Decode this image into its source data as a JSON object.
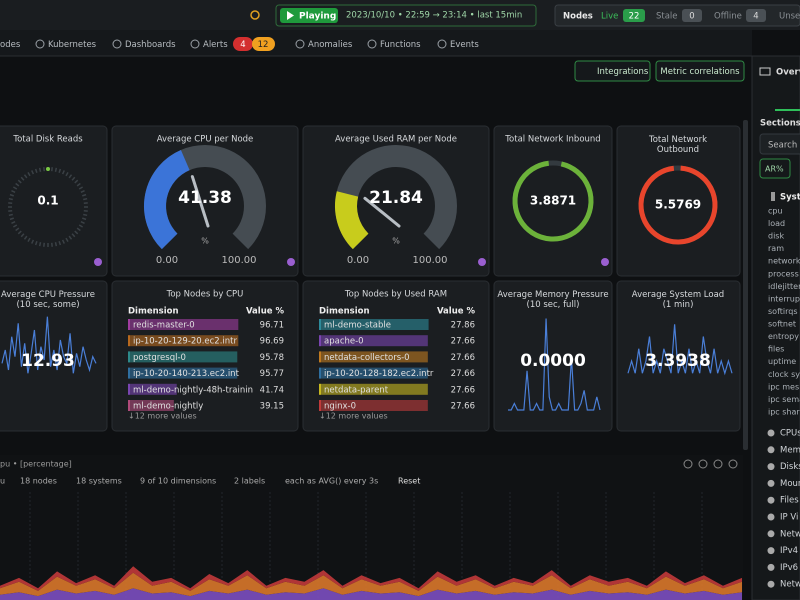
{
  "topbar": {
    "playing": "Playing",
    "time_range": "2023/10/10 • 22:59 → 23:14 • last 15min",
    "nodes_label": "Nodes",
    "live": "Live",
    "live_count": 22,
    "stale": "Stale",
    "stale_count": 0,
    "offline": "Offline",
    "offline_count": 4,
    "unseen": "Unse"
  },
  "nav": {
    "items": [
      "odes",
      "Kubernetes",
      "Dashboards",
      "Alerts",
      "Anomalies",
      "Functions",
      "Events"
    ],
    "alert_critical": 4,
    "alert_warning": 12
  },
  "actions": {
    "integrations": "Integrations",
    "metric_correlations": "Metric correlations"
  },
  "cards": {
    "disk_reads": {
      "title": "Total Disk Reads",
      "value": "0.1"
    },
    "cpu_gauge": {
      "title": "Average CPU per Node",
      "value": 41.38,
      "unit": "%",
      "min": "0.00",
      "max": "100.00"
    },
    "ram_gauge": {
      "title": "Average Used RAM per Node",
      "value": 21.84,
      "unit": "%",
      "min": "0.00",
      "max": "100.00"
    },
    "net_in": {
      "title": "Total Network Inbound",
      "value": "3.8871"
    },
    "net_out": {
      "title": "Total Network Outbound",
      "value": "5.5769"
    },
    "cpu_pressure": {
      "title": "Average CPU Pressure (10 sec, some)",
      "value": 12.93,
      "spark": [
        14,
        18,
        12,
        22,
        16,
        26,
        13,
        20,
        11,
        17,
        24,
        12,
        19,
        15,
        28,
        13,
        18,
        12,
        21,
        16,
        14,
        23,
        11,
        17,
        13,
        19,
        15,
        12,
        16,
        14
      ]
    },
    "mem_pressure": {
      "title": "Average Memory Pressure (10 sec, full)",
      "value": "0.0000",
      "spark": [
        0,
        0,
        1,
        0,
        0,
        0,
        6,
        0,
        0,
        1,
        0,
        0,
        14,
        2,
        0,
        0,
        1,
        0,
        0,
        0,
        8,
        0,
        0,
        1,
        3,
        0,
        0,
        0,
        2,
        0
      ]
    },
    "sys_load": {
      "title": "Average System Load (1 min)",
      "value": "3.3938",
      "spark": [
        3,
        4,
        3,
        5,
        3,
        4,
        6,
        3,
        4,
        3,
        5,
        4,
        3,
        7,
        3,
        4,
        3,
        5,
        3,
        4,
        3,
        6,
        4,
        3,
        5,
        3,
        4,
        3,
        4,
        3
      ]
    }
  },
  "top_cpu": {
    "title": "Top Nodes by CPU",
    "headers": [
      "Dimension",
      "Value %"
    ],
    "rows": [
      [
        "redis-master-0",
        96.71
      ],
      [
        "ip-10-20-129-20.ec2.intr",
        96.69
      ],
      [
        "postgresql-0",
        95.78
      ],
      [
        "ip-10-20-140-213.ec2.int",
        95.77
      ],
      [
        "ml-demo-nightly-48h-trainin",
        41.74
      ],
      [
        "ml-demo-nightly",
        39.15
      ]
    ],
    "more": "↓12 more values"
  },
  "top_ram": {
    "title": "Top Nodes by Used RAM",
    "headers": [
      "Dimension",
      "Value %"
    ],
    "rows": [
      [
        "ml-demo-stable",
        27.86
      ],
      [
        "apache-0",
        27.66
      ],
      [
        "netdata-collectors-0",
        27.66
      ],
      [
        "ip-10-20-128-182.ec2.intr",
        27.66
      ],
      [
        "netdata-parent",
        27.66
      ],
      [
        "nginx-0",
        27.66
      ]
    ],
    "more": "↓12 more values"
  },
  "bottom_chart": {
    "title": "pu • [percentage]",
    "filters": [
      "u",
      "18 nodes",
      "18 systems",
      "9 of 10 dimensions",
      "2 labels",
      "each as AVG() every 3s",
      "Reset"
    ],
    "series": [
      {
        "color": "#7c4fc0",
        "values": [
          4,
          6,
          3,
          8,
          5,
          7,
          4,
          9,
          5,
          6,
          3,
          7,
          5,
          8,
          4,
          6,
          5,
          9,
          4,
          7,
          5,
          6,
          3,
          8,
          5,
          7,
          4,
          6,
          5,
          8,
          4,
          7,
          5,
          6,
          4,
          8,
          5,
          7,
          4,
          6
        ]
      },
      {
        "color": "#d9782a",
        "values": [
          5,
          8,
          4,
          10,
          6,
          9,
          5,
          12,
          6,
          8,
          4,
          9,
          6,
          11,
          5,
          8,
          6,
          10,
          5,
          9,
          6,
          8,
          4,
          10,
          6,
          9,
          5,
          8,
          6,
          11,
          5,
          9,
          6,
          8,
          5,
          10,
          6,
          9,
          5,
          8
        ]
      },
      {
        "color": "#c23a3a",
        "values": [
          2,
          3,
          2,
          4,
          2,
          3,
          2,
          5,
          3,
          3,
          2,
          4,
          2,
          4,
          2,
          3,
          3,
          4,
          2,
          3,
          2,
          3,
          2,
          4,
          3,
          3,
          2,
          3,
          2,
          4,
          2,
          3,
          3,
          3,
          2,
          4,
          2,
          3,
          2,
          3
        ]
      }
    ]
  },
  "sidebar": {
    "title": "Overv",
    "sections": "Sections a",
    "search": "Search",
    "filter": "AR%",
    "group": "Syst",
    "items": [
      "cpu",
      "load",
      "disk",
      "ram",
      "network",
      "process",
      "idlejitter",
      "interrup",
      "softirqs",
      "softnet",
      "entropy",
      "files",
      "uptime",
      "clock sy",
      "ipc mes",
      "ipc sema",
      "ipc shar"
    ],
    "groups": [
      "CPUs",
      "Mem",
      "Disks",
      "Moun",
      "Files",
      "IP Vi",
      "Netw",
      "IPv4",
      "IPv6",
      "Netw"
    ]
  }
}
